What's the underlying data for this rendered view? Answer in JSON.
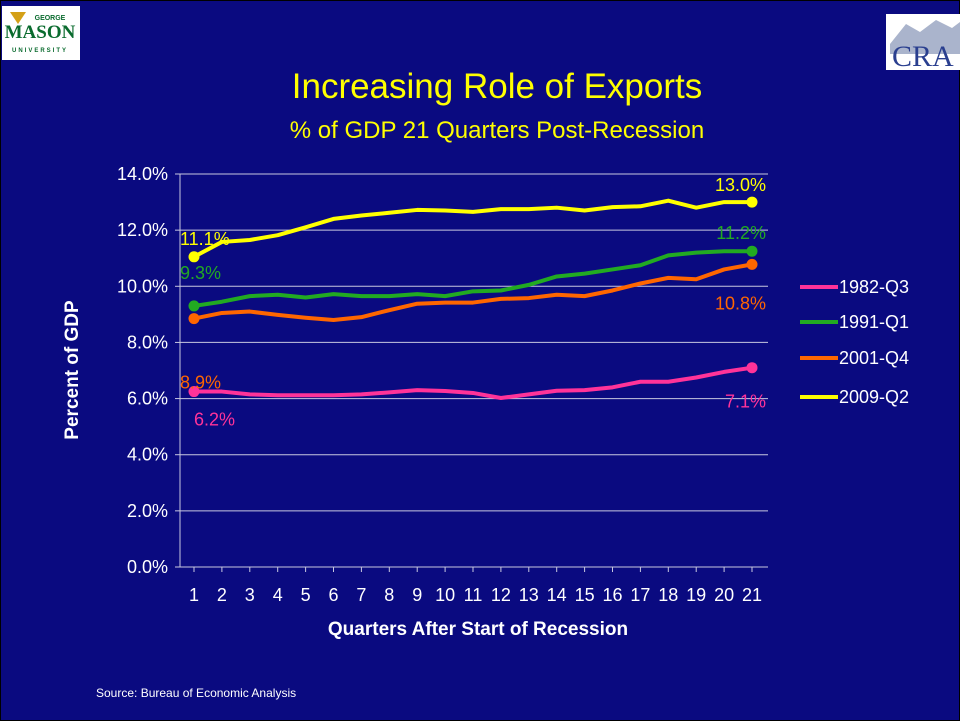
{
  "logos": {
    "left": {
      "line1": "GEORGE",
      "line2": "MASON",
      "line3": "UNIVERSITY"
    },
    "right": {
      "text": "CRA"
    }
  },
  "source": "Source: Bureau of Economic Analysis",
  "colors": {
    "background": "#0a0a80",
    "title": "#ffff00",
    "1982-Q3": "#ff3399",
    "1991-Q1": "#22aa22",
    "2001-Q4": "#ff6600",
    "2009-Q2": "#ffff00"
  },
  "chart_data": {
    "type": "line",
    "title": "Increasing Role of Exports",
    "subtitle": "% of GDP 21 Quarters Post-Recession",
    "xlabel": "Quarters After Start of Recession",
    "ylabel": "Percent of GDP",
    "x": [
      1,
      2,
      3,
      4,
      5,
      6,
      7,
      8,
      9,
      10,
      11,
      12,
      13,
      14,
      15,
      16,
      17,
      18,
      19,
      20,
      21
    ],
    "x_tick_labels": [
      "1",
      "2",
      "3",
      "4",
      "5",
      "6",
      "7",
      "8",
      "9",
      "10",
      "11",
      "12",
      "13",
      "14",
      "15",
      "16",
      "17",
      "18",
      "19",
      "20",
      "21"
    ],
    "ylim": [
      0,
      14
    ],
    "y_ticks": [
      0,
      2,
      4,
      6,
      8,
      10,
      12,
      14
    ],
    "y_tick_labels": [
      "0.0%",
      "2.0%",
      "4.0%",
      "6.0%",
      "8.0%",
      "10.0%",
      "12.0%",
      "14.0%"
    ],
    "grid": "horizontal",
    "legend_position": "right",
    "series": [
      {
        "name": "1982-Q3",
        "color": "#ff3399",
        "values": [
          6.25,
          6.25,
          6.15,
          6.12,
          6.12,
          6.12,
          6.15,
          6.22,
          6.3,
          6.27,
          6.2,
          6.02,
          6.15,
          6.28,
          6.3,
          6.4,
          6.6,
          6.6,
          6.75,
          6.95,
          7.1
        ],
        "labels": [
          {
            "index": 0,
            "text": "6.2%"
          },
          {
            "index": 20,
            "text": "7.1%"
          }
        ]
      },
      {
        "name": "1991-Q1",
        "color": "#22aa22",
        "values": [
          9.3,
          9.45,
          9.65,
          9.7,
          9.6,
          9.72,
          9.65,
          9.65,
          9.72,
          9.65,
          9.82,
          9.85,
          10.05,
          10.35,
          10.45,
          10.6,
          10.75,
          11.1,
          11.2,
          11.25,
          11.25
        ],
        "labels": [
          {
            "index": 0,
            "text": "9.3%"
          },
          {
            "index": 20,
            "text": "11.2%"
          }
        ]
      },
      {
        "name": "2001-Q4",
        "color": "#ff6600",
        "values": [
          8.85,
          9.05,
          9.1,
          8.98,
          8.88,
          8.8,
          8.9,
          9.15,
          9.38,
          9.42,
          9.42,
          9.55,
          9.58,
          9.7,
          9.65,
          9.85,
          10.1,
          10.3,
          10.25,
          10.6,
          10.78
        ],
        "labels": [
          {
            "index": 0,
            "text": "8.9%"
          },
          {
            "index": 20,
            "text": "10.8%"
          }
        ]
      },
      {
        "name": "2009-Q2",
        "color": "#ffff00",
        "values": [
          11.05,
          11.58,
          11.65,
          11.82,
          12.1,
          12.4,
          12.52,
          12.62,
          12.72,
          12.7,
          12.65,
          12.75,
          12.75,
          12.8,
          12.7,
          12.82,
          12.85,
          13.05,
          12.8,
          13.0,
          13.0
        ],
        "labels": [
          {
            "index": 0,
            "text": "11.1%"
          },
          {
            "index": 20,
            "text": "13.0%"
          }
        ]
      }
    ]
  }
}
